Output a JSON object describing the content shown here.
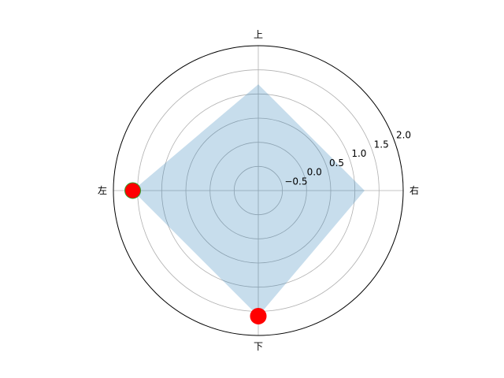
{
  "chart_data": {
    "type": "radar",
    "title": "",
    "categories": [
      "右",
      "上",
      "左",
      "下"
    ],
    "category_angles_deg": [
      0,
      90,
      180,
      270
    ],
    "values": [
      1.2,
      1.2,
      1.6,
      1.6
    ],
    "radial_ticks": [
      "−0.5",
      "0.0",
      "0.5",
      "1.0",
      "1.5",
      "2.0"
    ],
    "radial_tick_values": [
      -0.5,
      0.0,
      0.5,
      1.0,
      1.5,
      2.0
    ],
    "rlim": [
      -1.0,
      2.0
    ],
    "grid": true,
    "highlight_points": [
      {
        "category": "左",
        "value": 1.6,
        "color": "#ff0000",
        "edge_color": "#2ca02c"
      },
      {
        "category": "下",
        "value": 1.6,
        "color": "#ff0000",
        "edge_color": "#ff0000"
      }
    ],
    "fill_color": "#1f77b4",
    "fill_alpha": 0.25
  }
}
